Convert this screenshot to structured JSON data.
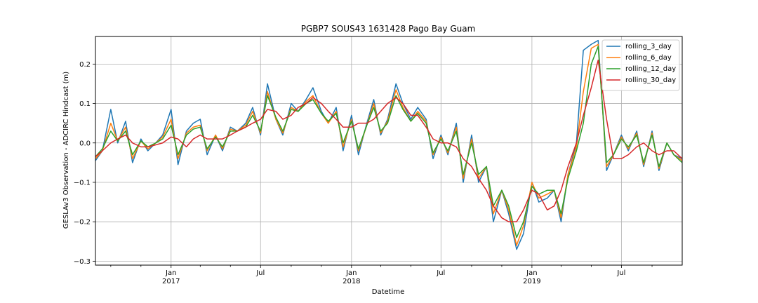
{
  "chart_data": {
    "type": "line",
    "title": "PGBP7 SOUS43 1631428 Pago Bay Guam",
    "xlabel": "Datetime",
    "ylabel": "GESLAv3 Observation - ADCIRC Hindcast (m)",
    "xlim": [
      "2016-08-01",
      "2019-11-01"
    ],
    "ylim": [
      -0.31,
      0.27
    ],
    "grid": true,
    "legend_position": "top-right",
    "x_ticks": [
      {
        "date": "2016-09-01",
        "label": "",
        "major": false
      },
      {
        "date": "2016-11-01",
        "label": "",
        "major": false
      },
      {
        "date": "2017-01-01",
        "label": "Jan",
        "year": "2017",
        "major": true
      },
      {
        "date": "2017-03-01",
        "label": "",
        "major": false
      },
      {
        "date": "2017-05-01",
        "label": "",
        "major": false
      },
      {
        "date": "2017-07-01",
        "label": "Jul",
        "major": true
      },
      {
        "date": "2017-09-01",
        "label": "",
        "major": false
      },
      {
        "date": "2017-11-01",
        "label": "",
        "major": false
      },
      {
        "date": "2018-01-01",
        "label": "Jan",
        "year": "2018",
        "major": true
      },
      {
        "date": "2018-03-01",
        "label": "",
        "major": false
      },
      {
        "date": "2018-05-01",
        "label": "",
        "major": false
      },
      {
        "date": "2018-07-01",
        "label": "Jul",
        "major": true
      },
      {
        "date": "2018-09-01",
        "label": "",
        "major": false
      },
      {
        "date": "2018-11-01",
        "label": "",
        "major": false
      },
      {
        "date": "2019-01-01",
        "label": "Jan",
        "year": "2019",
        "major": true
      },
      {
        "date": "2019-03-01",
        "label": "",
        "major": false
      },
      {
        "date": "2019-05-01",
        "label": "",
        "major": false
      },
      {
        "date": "2019-07-01",
        "label": "Jul",
        "major": true
      },
      {
        "date": "2019-09-01",
        "label": "",
        "major": false
      }
    ],
    "y_ticks": [
      {
        "value": -0.3,
        "label": "−0.3"
      },
      {
        "value": -0.2,
        "label": "−0.2"
      },
      {
        "value": -0.1,
        "label": "−0.1"
      },
      {
        "value": 0.0,
        "label": "0.0"
      },
      {
        "value": 0.1,
        "label": "0.1"
      },
      {
        "value": 0.2,
        "label": "0.2"
      }
    ],
    "x": [
      "2016-08-01",
      "2016-08-15",
      "2016-09-01",
      "2016-09-15",
      "2016-10-01",
      "2016-10-15",
      "2016-11-01",
      "2016-11-15",
      "2016-12-01",
      "2016-12-15",
      "2017-01-01",
      "2017-01-15",
      "2017-02-01",
      "2017-02-15",
      "2017-03-01",
      "2017-03-15",
      "2017-04-01",
      "2017-04-15",
      "2017-05-01",
      "2017-05-15",
      "2017-06-01",
      "2017-06-15",
      "2017-07-01",
      "2017-07-15",
      "2017-08-01",
      "2017-08-15",
      "2017-09-01",
      "2017-09-15",
      "2017-10-01",
      "2017-10-15",
      "2017-11-01",
      "2017-11-15",
      "2017-12-01",
      "2017-12-15",
      "2018-01-01",
      "2018-01-15",
      "2018-02-01",
      "2018-02-15",
      "2018-03-01",
      "2018-03-15",
      "2018-04-01",
      "2018-04-15",
      "2018-05-01",
      "2018-05-15",
      "2018-06-01",
      "2018-06-15",
      "2018-07-01",
      "2018-07-15",
      "2018-08-01",
      "2018-08-15",
      "2018-09-01",
      "2018-09-15",
      "2018-10-01",
      "2018-10-15",
      "2018-11-01",
      "2018-11-15",
      "2018-12-01",
      "2018-12-15",
      "2019-01-01",
      "2019-01-15",
      "2019-02-01",
      "2019-02-15",
      "2019-03-01",
      "2019-03-15",
      "2019-04-01",
      "2019-04-15",
      "2019-05-01",
      "2019-05-15",
      "2019-06-01",
      "2019-06-15",
      "2019-07-01",
      "2019-07-15",
      "2019-08-01",
      "2019-08-15",
      "2019-09-01",
      "2019-09-15",
      "2019-10-01",
      "2019-10-15",
      "2019-11-01"
    ],
    "series": [
      {
        "name": "rolling_3_day",
        "color": "#1f77b4",
        "values": [
          -0.045,
          -0.02,
          0.085,
          0.0,
          0.055,
          -0.05,
          0.01,
          -0.02,
          0.0,
          0.02,
          0.085,
          -0.055,
          0.03,
          0.05,
          0.06,
          -0.03,
          0.02,
          -0.02,
          0.04,
          0.03,
          0.05,
          0.09,
          0.02,
          0.15,
          0.06,
          0.02,
          0.1,
          0.08,
          0.11,
          0.14,
          0.08,
          0.05,
          0.09,
          -0.02,
          0.07,
          -0.03,
          0.05,
          0.11,
          0.02,
          0.06,
          0.15,
          0.1,
          0.06,
          0.09,
          0.06,
          -0.04,
          0.02,
          -0.03,
          0.05,
          -0.1,
          0.02,
          -0.1,
          -0.06,
          -0.2,
          -0.12,
          -0.18,
          -0.27,
          -0.23,
          -0.1,
          -0.15,
          -0.14,
          -0.12,
          -0.2,
          -0.08,
          0.0,
          0.235,
          0.25,
          0.26,
          -0.07,
          -0.03,
          0.02,
          -0.02,
          0.03,
          -0.06,
          0.03,
          -0.07,
          0.0,
          -0.03,
          -0.04
        ]
      },
      {
        "name": "rolling_6_day",
        "color": "#ff7f0e",
        "values": [
          -0.04,
          -0.02,
          0.05,
          0.005,
          0.04,
          -0.04,
          0.005,
          -0.015,
          0.0,
          0.015,
          0.06,
          -0.04,
          0.025,
          0.04,
          0.045,
          -0.02,
          0.02,
          -0.015,
          0.035,
          0.03,
          0.045,
          0.08,
          0.025,
          0.13,
          0.06,
          0.025,
          0.09,
          0.08,
          0.105,
          0.12,
          0.075,
          0.05,
          0.08,
          -0.01,
          0.06,
          -0.02,
          0.045,
          0.1,
          0.025,
          0.055,
          0.135,
          0.09,
          0.055,
          0.08,
          0.055,
          -0.03,
          0.015,
          -0.025,
          0.04,
          -0.09,
          0.01,
          -0.09,
          -0.06,
          -0.18,
          -0.12,
          -0.17,
          -0.26,
          -0.21,
          -0.1,
          -0.14,
          -0.13,
          -0.12,
          -0.19,
          -0.08,
          -0.01,
          0.13,
          0.24,
          0.25,
          -0.06,
          -0.03,
          0.015,
          -0.015,
          0.025,
          -0.055,
          0.025,
          -0.065,
          0.0,
          -0.03,
          -0.045
        ]
      },
      {
        "name": "rolling_12_day",
        "color": "#2ca02c",
        "values": [
          -0.035,
          -0.015,
          0.03,
          0.005,
          0.03,
          -0.03,
          0.005,
          -0.01,
          0.0,
          0.01,
          0.045,
          -0.03,
          0.02,
          0.035,
          0.04,
          -0.015,
          0.015,
          -0.01,
          0.03,
          0.03,
          0.04,
          0.07,
          0.03,
          0.12,
          0.065,
          0.03,
          0.085,
          0.08,
          0.1,
          0.11,
          0.075,
          0.055,
          0.075,
          0.0,
          0.055,
          -0.015,
          0.045,
          0.09,
          0.03,
          0.05,
          0.12,
          0.085,
          0.055,
          0.075,
          0.05,
          -0.025,
          0.01,
          -0.02,
          0.03,
          -0.08,
          0.0,
          -0.08,
          -0.06,
          -0.16,
          -0.12,
          -0.16,
          -0.24,
          -0.2,
          -0.11,
          -0.13,
          -0.12,
          -0.12,
          -0.18,
          -0.09,
          -0.02,
          0.05,
          0.2,
          0.245,
          -0.05,
          -0.03,
          0.01,
          -0.01,
          0.02,
          -0.05,
          0.02,
          -0.06,
          0.0,
          -0.03,
          -0.05
        ]
      },
      {
        "name": "rolling_30_day",
        "color": "#d62728",
        "values": [
          -0.035,
          -0.02,
          0.0,
          0.01,
          0.02,
          0.0,
          -0.01,
          -0.01,
          -0.005,
          0.0,
          0.015,
          0.01,
          -0.01,
          0.01,
          0.02,
          0.01,
          0.01,
          0.01,
          0.02,
          0.03,
          0.04,
          0.05,
          0.06,
          0.085,
          0.08,
          0.06,
          0.07,
          0.09,
          0.1,
          0.115,
          0.1,
          0.08,
          0.06,
          0.04,
          0.04,
          0.05,
          0.05,
          0.06,
          0.08,
          0.1,
          0.115,
          0.1,
          0.07,
          0.07,
          0.04,
          0.01,
          0.0,
          0.0,
          -0.01,
          -0.04,
          -0.06,
          -0.09,
          -0.12,
          -0.16,
          -0.19,
          -0.2,
          -0.2,
          -0.17,
          -0.12,
          -0.13,
          -0.17,
          -0.16,
          -0.12,
          -0.06,
          0.0,
          0.07,
          0.14,
          0.21,
          0.06,
          -0.04,
          -0.04,
          -0.03,
          -0.01,
          0.0,
          -0.02,
          -0.03,
          -0.02,
          -0.02,
          -0.04
        ]
      }
    ]
  }
}
